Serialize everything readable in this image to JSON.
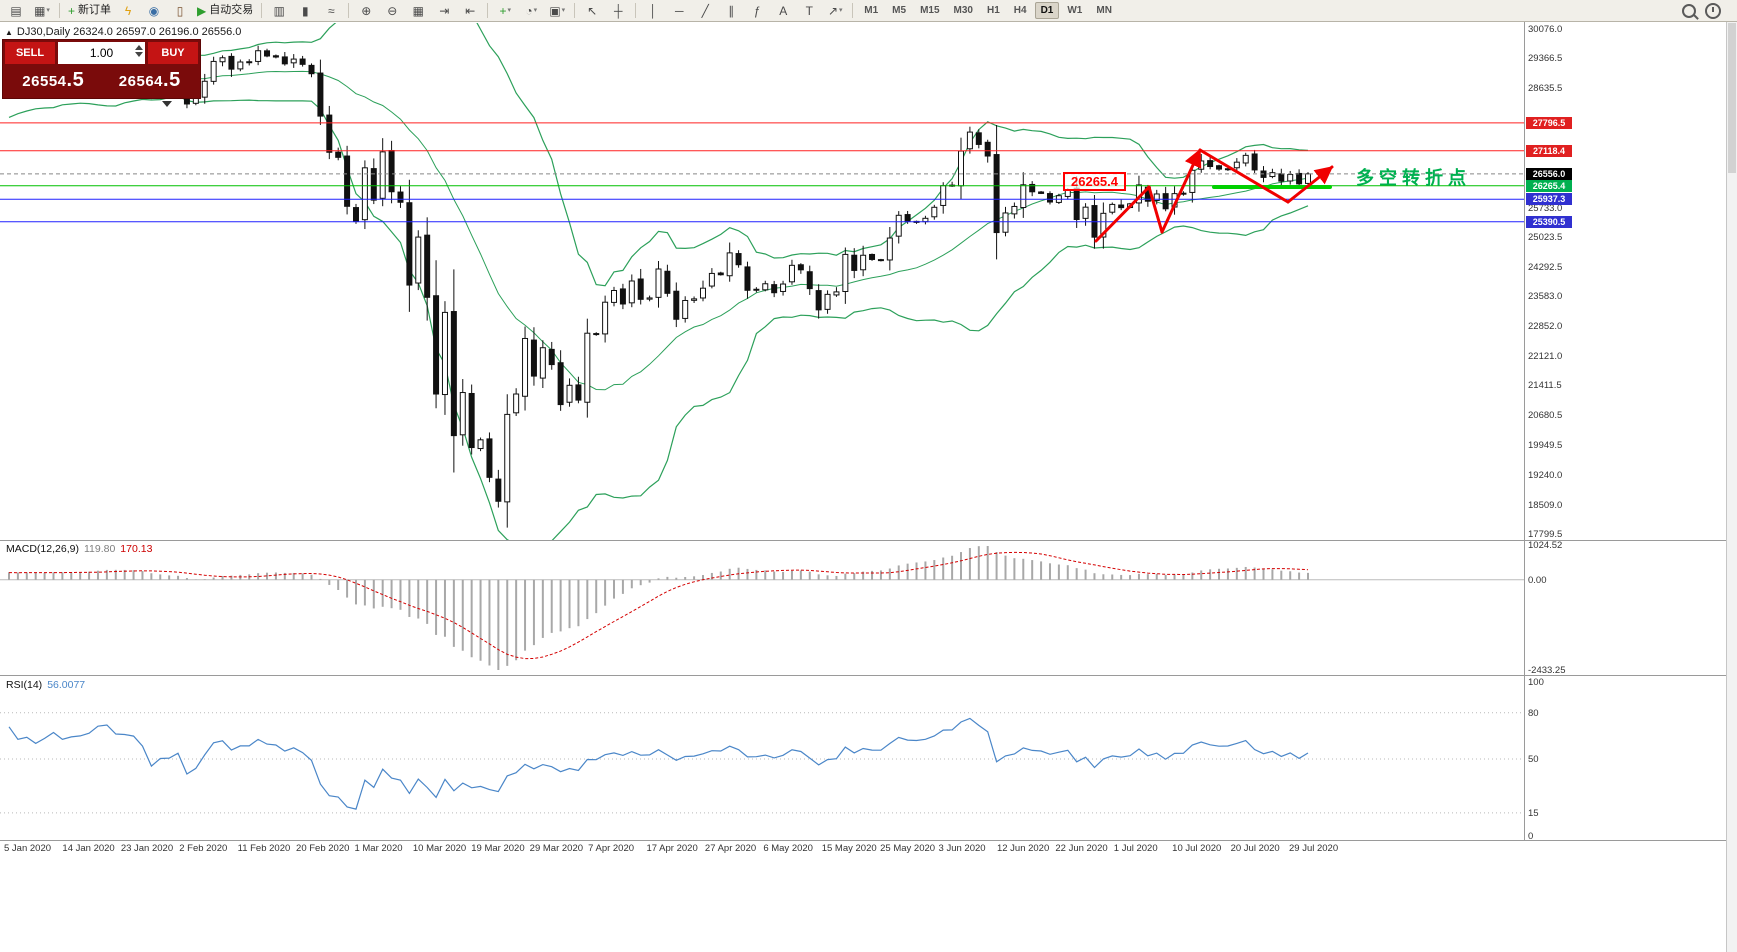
{
  "toolbar": {
    "buttons": [
      {
        "name": "new-chart-icon",
        "glyph": "▤",
        "type": "icon"
      },
      {
        "name": "profiles-icon",
        "glyph": "▦",
        "type": "icon",
        "caret": true
      },
      {
        "type": "sep"
      },
      {
        "name": "new-order-button",
        "glyph": "+",
        "glyph_color": "#2e9e2e",
        "label": "新订单",
        "type": "labeled"
      },
      {
        "name": "mql-wizard-icon",
        "glyph": "ϟ",
        "glyph_color": "#e0a010",
        "type": "icon"
      },
      {
        "name": "market-watch-icon",
        "glyph": "◉",
        "glyph_color": "#3a6ea5",
        "type": "icon"
      },
      {
        "name": "data-window-icon",
        "glyph": "▯",
        "glyph_color": "#7a5230",
        "type": "icon"
      },
      {
        "name": "auto-trading-button",
        "glyph": "▶",
        "glyph_color": "#2e9e2e",
        "label": "自动交易",
        "type": "labeled"
      },
      {
        "type": "sep"
      },
      {
        "name": "bar-chart-icon",
        "glyph": "▥",
        "type": "icon"
      },
      {
        "name": "candlestick-chart-icon",
        "glyph": "▮",
        "type": "icon"
      },
      {
        "name": "line-chart-icon",
        "glyph": "≈",
        "type": "icon"
      },
      {
        "type": "sep"
      },
      {
        "name": "zoom-in-icon",
        "glyph": "⊕",
        "type": "icon"
      },
      {
        "name": "zoom-out-icon",
        "glyph": "⊖",
        "type": "icon"
      },
      {
        "name": "tile-windows-icon",
        "glyph": "▦",
        "type": "icon"
      },
      {
        "name": "auto-scroll-icon",
        "glyph": "⇥",
        "type": "icon"
      },
      {
        "name": "chart-shift-icon",
        "glyph": "⇤",
        "type": "icon"
      },
      {
        "type": "sep"
      },
      {
        "name": "indicators-icon",
        "glyph": "+",
        "glyph_color": "#2e9e2e",
        "type": "icon",
        "caret": true
      },
      {
        "name": "periods-icon",
        "glyph": "◔",
        "type": "icon",
        "caret": true
      },
      {
        "name": "templates-icon",
        "glyph": "▣",
        "type": "icon",
        "caret": true
      },
      {
        "type": "sep"
      },
      {
        "name": "cursor-icon",
        "glyph": "↖",
        "type": "icon"
      },
      {
        "name": "crosshair-icon",
        "glyph": "┼",
        "type": "icon"
      },
      {
        "type": "sep"
      },
      {
        "name": "vertical-line-icon",
        "glyph": "│",
        "type": "icon"
      },
      {
        "name": "horizontal-line-icon",
        "glyph": "─",
        "type": "icon"
      },
      {
        "name": "trendline-icon",
        "glyph": "╱",
        "type": "icon"
      },
      {
        "name": "channel-icon",
        "glyph": "∥",
        "type": "icon"
      },
      {
        "name": "fibonacci-icon",
        "glyph": "ƒ",
        "type": "icon"
      },
      {
        "name": "text-icon",
        "glyph": "A",
        "type": "icon"
      },
      {
        "name": "label-icon",
        "glyph": "T",
        "type": "icon"
      },
      {
        "name": "arrows-icon",
        "glyph": "↗",
        "type": "icon",
        "caret": true
      },
      {
        "type": "sep"
      }
    ],
    "timeframes": [
      {
        "label": "M1"
      },
      {
        "label": "M5"
      },
      {
        "label": "M15"
      },
      {
        "label": "M30"
      },
      {
        "label": "H1"
      },
      {
        "label": "H4"
      },
      {
        "label": "D1",
        "active": true
      },
      {
        "label": "W1"
      },
      {
        "label": "MN"
      }
    ]
  },
  "chart": {
    "collapse_arrow": "▲",
    "symbol_line": "DJ30,Daily  26324.0 26597.0 26196.0 26556.0",
    "trade_panel": {
      "sell_label": "SELL",
      "buy_label": "BUY",
      "volume": "1.00",
      "sell_price_main": "26554",
      "sell_price_pip": ".5",
      "buy_price_main": "26564",
      "buy_price_pip": ".5"
    },
    "price_axis_ticks": [
      30076.0,
      29366.5,
      28635.5,
      25733.0,
      25023.5,
      24292.5,
      23583.0,
      22852.0,
      22121.0,
      21411.5,
      20680.5,
      19949.5,
      19240.0,
      18509.0,
      17799.5
    ],
    "hlines": [
      {
        "price": 27796.5,
        "label": "27796.5",
        "color": "#ff2020",
        "chip": "#e02020"
      },
      {
        "price": 27118.4,
        "label": "27118.4",
        "color": "#ff2020",
        "chip": "#e02020"
      },
      {
        "price": 26265.4,
        "label": "26265.4",
        "color": "#00c000",
        "chip": "#00b050"
      },
      {
        "price": 25937.3,
        "label": "25937.3",
        "color": "#2020ff",
        "chip": "#3030d0"
      },
      {
        "price": 25390.5,
        "label": "25390.5",
        "color": "#2020ff",
        "chip": "#3030d0"
      }
    ],
    "current_price": {
      "price": 26556.0,
      "label": "26556.0",
      "chip": "#000000"
    },
    "annotation_box": {
      "text": "26265.4",
      "color": "#ff0000"
    },
    "note": {
      "text": "多空转折点",
      "color": "#00b050"
    }
  },
  "chart_data": {
    "type": "candlestick",
    "symbol": "DJ30",
    "period": "Daily",
    "ohlc_header": {
      "open": 26324.0,
      "high": 26597.0,
      "low": 26196.0,
      "close": 26556.0
    },
    "price_range": {
      "min": 17650,
      "max": 30250
    },
    "pre_closes": [
      27783,
      27881,
      28015,
      28132,
      28290,
      28235,
      28135,
      28338,
      28376,
      28551,
      28455,
      28515,
      28621,
      28239,
      28455,
      28552,
      28621,
      28645,
      28462,
      28538
    ],
    "closes": [
      28869,
      28635,
      28704,
      28584,
      28745,
      28957,
      28824,
      28907,
      28939,
      29030,
      29298,
      29348,
      29196,
      29186,
      29160,
      28990,
      28536,
      28723,
      28734,
      28859,
      28256,
      28400,
      28808,
      29291,
      29380,
      29103,
      29277,
      29276,
      29551,
      29423,
      29398,
      29232,
      29348,
      29220,
      28992,
      27961,
      27081,
      26958,
      25767,
      25409,
      26703,
      25917,
      27091,
      26121,
      25865,
      23851,
      25018,
      23553,
      21201,
      23186,
      20189,
      21237,
      19899,
      20087,
      19174,
      18592,
      20705,
      21201,
      22552,
      21637,
      22327,
      21917,
      20944,
      21413,
      21053,
      22680,
      22654,
      23434,
      23719,
      23391,
      23950,
      23504,
      23538,
      24242,
      23650,
      23019,
      23476,
      23515,
      23775,
      24134,
      24102,
      24634,
      24346,
      23724,
      23749,
      23883,
      23665,
      23876,
      24331,
      24222,
      23765,
      23248,
      23625,
      23685,
      24597,
      24207,
      24576,
      24474,
      24465,
      24995,
      25548,
      25401,
      25383,
      25475,
      25743,
      26270,
      26282,
      27111,
      27572,
      27272,
      26990,
      25128,
      25605,
      25763,
      26290,
      26120,
      26080,
      25871,
      26025,
      26156,
      25446,
      25746,
      25016,
      25596,
      25813,
      25735,
      25827,
      26287,
      25890,
      26067,
      25706,
      26075,
      26086,
      26643,
      26870,
      26735,
      26672,
      26681,
      26840,
      27006,
      26652,
      26470,
      26585,
      26379,
      26540,
      26313,
      26556
    ],
    "indicators": {
      "bollinger": {
        "period": 20,
        "deviation": 2,
        "color": "#2ca05a"
      },
      "macd": {
        "label": "MACD(12,26,9)",
        "value_main": "119.80",
        "value_signal": "170.13",
        "value_main_color": "#7f7f7f",
        "value_signal_color": "#cc0000",
        "axis_max": "1024.52",
        "axis_zero": "0.00",
        "axis_min": "-2433.25",
        "hist_color": "#a8a8a8",
        "signal_color": "#d40000"
      },
      "rsi": {
        "label": "RSI(14)",
        "value": "56.0077",
        "color": "#4a86c8",
        "levels": [
          100,
          80,
          50,
          15,
          0
        ]
      }
    },
    "date_labels": [
      "5 Jan 2020",
      "14 Jan 2020",
      "23 Jan 2020",
      "2 Feb 2020",
      "11 Feb 2020",
      "20 Feb 2020",
      "1 Mar 2020",
      "10 Mar 2020",
      "19 Mar 2020",
      "29 Mar 2020",
      "7 Apr 2020",
      "17 Apr 2020",
      "27 Apr 2020",
      "6 May 2020",
      "15 May 2020",
      "25 May 2020",
      "3 Jun 2020",
      "12 Jun 2020",
      "22 Jun 2020",
      "1 Jul 2020",
      "10 Jul 2020",
      "20 Jul 2020",
      "29 Jul 2020"
    ]
  }
}
